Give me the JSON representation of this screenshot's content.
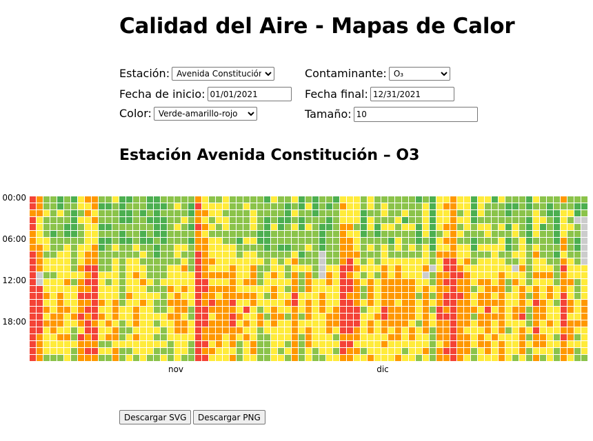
{
  "page": {
    "title": "Calidad del Aire - Mapas de Calor"
  },
  "controls": {
    "station_label": "Estación:",
    "station_value": "Avenida Constitución",
    "station_options": [
      "Avenida Constitución"
    ],
    "pollutant_label": "Contaminante:",
    "pollutant_value": "O₃",
    "pollutant_options": [
      "O₃"
    ],
    "start_label": "Fecha de inicio:",
    "start_value": "01/01/2021",
    "end_label": "Fecha final:",
    "end_value": "12/31/2021",
    "color_label": "Color:",
    "color_value": "Verde-amarillo-rojo",
    "color_options": [
      "Verde-amarillo-rojo"
    ],
    "size_label": "Tamaño:",
    "size_value": "10"
  },
  "chart_title": "Estación Avenida Constitución – O3",
  "colors": {
    "scale": [
      "#4caf50",
      "#8bc34a",
      "#ffeb3b",
      "#ff9800",
      "#f44336"
    ],
    "missing": "#cccccc"
  },
  "chart_data": {
    "type": "heatmap",
    "title": "Estación Avenida Constitución – O3",
    "y_ticks": [
      "00:00",
      "06:00",
      "12:00",
      "18:00"
    ],
    "x_ticks": [
      "nov",
      "dic"
    ],
    "colorscale": "Verde-amarillo-rojo",
    "grid": false,
    "legend": "none"
  },
  "buttons": {
    "svg": "Descargar SVG",
    "png": "Descargar PNG"
  }
}
